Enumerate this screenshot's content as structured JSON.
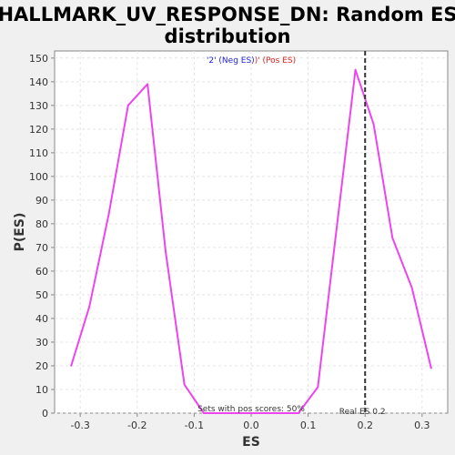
{
  "chart_data": {
    "type": "line",
    "title_line1": "HALLMARK_UV_RESPONSE_DN: Random ES",
    "title_line2": "distribution",
    "xlabel": "ES",
    "ylabel": "P(ES)",
    "xlim": [
      -0.345,
      0.345
    ],
    "ylim": [
      0,
      153
    ],
    "xticks": [
      -0.3,
      -0.2,
      -0.1,
      0.0,
      0.1,
      0.2,
      0.3
    ],
    "xtick_labels": [
      "-0.3",
      "-0.2",
      "-0.1",
      "0.0",
      "0.1",
      "0.2",
      "0.3"
    ],
    "yticks": [
      0,
      10,
      20,
      30,
      40,
      50,
      60,
      70,
      80,
      90,
      100,
      110,
      120,
      130,
      140,
      150
    ],
    "ytick_labels": [
      "0",
      "10",
      "20",
      "30",
      "40",
      "50",
      "60",
      "70",
      "80",
      "90",
      "100",
      "110",
      "120",
      "130",
      "140",
      "150"
    ],
    "grid": true,
    "series": [
      {
        "color": "#ee44ee",
        "x": [
          -0.316,
          -0.284,
          -0.25,
          -0.216,
          -0.182,
          -0.15,
          -0.117,
          -0.083,
          -0.05,
          0.0,
          0.05,
          0.083,
          0.117,
          0.15,
          0.183,
          0.215,
          0.248,
          0.282,
          0.316
        ],
        "y": [
          20,
          45,
          84,
          130,
          139,
          68,
          12,
          0,
          0,
          0,
          0,
          0,
          11,
          78,
          145,
          122,
          74,
          53,
          19
        ]
      }
    ],
    "real_es": 0.2,
    "real_es_label": "Real ES 0.2",
    "footer_text": "Sets with pos scores: 50%",
    "legend": {
      "neg_text": "'2' (Neg ES)",
      "pos_text": ")' (Pos ES)",
      "neg_color": "#2222dd",
      "pos_color": "#dd2222",
      "placement": "top-center"
    },
    "line_color": "#ee44ee",
    "real_es_line_color": "#333333"
  }
}
